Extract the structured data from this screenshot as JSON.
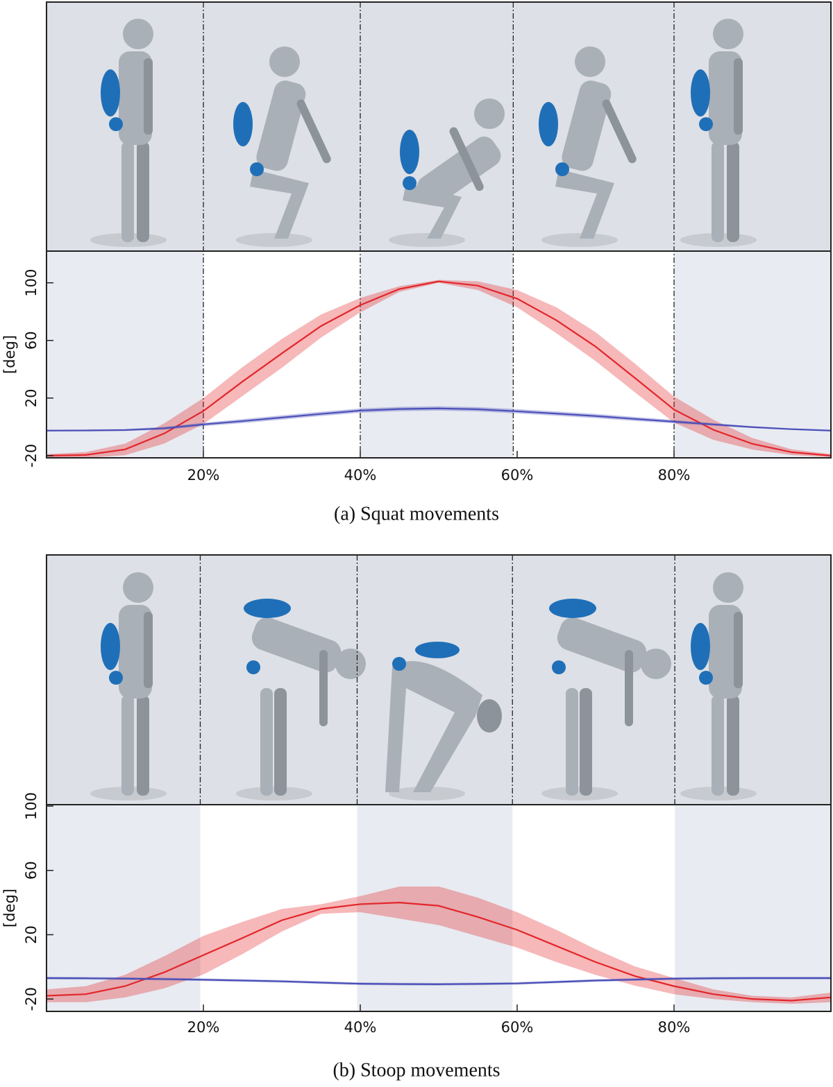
{
  "chart_data": [
    {
      "type": "line",
      "title": "(a) Squat movements",
      "y_label": "[deg]",
      "x": [
        0,
        5,
        10,
        15,
        20,
        25,
        30,
        35,
        40,
        45,
        50,
        55,
        60,
        65,
        70,
        75,
        80,
        85,
        90,
        95,
        100
      ],
      "xlim": [
        0,
        100
      ],
      "xticks": [
        {
          "value": 20,
          "label": "20%"
        },
        {
          "value": 40,
          "label": "40%"
        },
        {
          "value": 60,
          "label": "60%"
        },
        {
          "value": 80,
          "label": "80%"
        }
      ],
      "ylim": [
        -21.5,
        122
      ],
      "yticks": [
        -20,
        20,
        60,
        100
      ],
      "phase_lines": [
        20,
        40,
        59.5,
        80
      ],
      "phase_lines_in_chart": true,
      "series": [
        {
          "color": "#e3262b",
          "values": [
            -20,
            -19.5,
            -15.7,
            -4.6,
            11,
            31.5,
            51,
            70,
            84.5,
            95.7,
            101,
            98,
            89,
            74,
            55.7,
            34,
            12,
            -2,
            -11.8,
            -17.6,
            -20
          ],
          "lower": [
            -21,
            -21.5,
            -19.7,
            -11.6,
            2,
            21.5,
            41,
            62,
            79.5,
            93.7,
            100,
            95,
            83,
            65,
            45.7,
            24,
            3,
            -9,
            -15.8,
            -19.6,
            -21
          ],
          "upper": [
            -19,
            -17.5,
            -11.7,
            2.4,
            20,
            41.5,
            61,
            78,
            89.5,
            97.7,
            102,
            101,
            95,
            83,
            65.7,
            44,
            21,
            5,
            -7.8,
            -15.6,
            -19
          ]
        },
        {
          "color": "#4b4fb8",
          "values": [
            -2.6,
            -2.5,
            -2.2,
            -1,
            1.7,
            4,
            6.5,
            9,
            11.3,
            12.4,
            12.8,
            12.2,
            10.8,
            9.2,
            7.5,
            5.5,
            3.6,
            1.7,
            -0.2,
            -1.6,
            -2.6
          ],
          "lower": [
            -3.1,
            -3.1,
            -2.9,
            -2,
            0.5,
            2.6,
            5,
            7.5,
            9.8,
            10.9,
            11.3,
            10.7,
            9.3,
            7.7,
            6,
            4.1,
            2.4,
            0.8,
            -0.8,
            -2.1,
            -3.1
          ],
          "upper": [
            -2.1,
            -1.9,
            -1.5,
            0,
            2.9,
            5.4,
            8,
            10.5,
            12.8,
            13.9,
            14.3,
            13.7,
            12.3,
            10.7,
            9,
            6.9,
            4.8,
            2.6,
            0.4,
            -1.1,
            -2.1
          ]
        }
      ]
    },
    {
      "type": "line",
      "title": "(b) Stoop movements",
      "y_label": "[deg]",
      "x": [
        0,
        5,
        10,
        15,
        20,
        25,
        30,
        35,
        40,
        45,
        50,
        55,
        60,
        65,
        70,
        75,
        80,
        85,
        90,
        95,
        100
      ],
      "xlim": [
        0,
        100
      ],
      "xticks": [
        {
          "value": 20,
          "label": "20%"
        },
        {
          "value": 40,
          "label": "40%"
        },
        {
          "value": 60,
          "label": "60%"
        },
        {
          "value": 80,
          "label": "80%"
        }
      ],
      "ylim": [
        -27.7,
        100.9
      ],
      "yticks": [
        -20,
        20,
        60,
        100
      ],
      "phase_lines": [
        19.6,
        39.6,
        59.4,
        80.1
      ],
      "phase_lines_in_chart": false,
      "series": [
        {
          "color": "#e3262b",
          "values": [
            -18,
            -17,
            -12,
            -3.4,
            7.3,
            18,
            29,
            36,
            39,
            40,
            38,
            31,
            23,
            13,
            3,
            -5.7,
            -12,
            -17,
            -20,
            -21,
            -19
          ],
          "lower": [
            -22,
            -22,
            -19,
            -13.4,
            -4.7,
            8,
            22,
            33,
            34,
            30,
            26,
            19,
            12,
            3,
            -5,
            -11.7,
            -17,
            -20,
            -22,
            -23,
            -22
          ],
          "upper": [
            -14,
            -12,
            -5,
            6.6,
            19.3,
            28,
            36,
            39,
            44,
            50,
            50,
            43,
            34,
            23,
            11,
            0.3,
            -7,
            -14,
            -18,
            -19,
            -16
          ]
        },
        {
          "color": "#4b4fb8",
          "values": [
            -7,
            -7.1,
            -7.3,
            -7.6,
            -8,
            -8.5,
            -9,
            -9.8,
            -10.5,
            -10.7,
            -10.8,
            -10.6,
            -10.3,
            -9.4,
            -8.5,
            -7.9,
            -7.3,
            -7.1,
            -7,
            -7,
            -7
          ],
          "lower": [
            -7.8,
            -7.9,
            -8.1,
            -8.4,
            -8.8,
            -9.3,
            -9.8,
            -10.6,
            -11.3,
            -11.5,
            -11.6,
            -11.4,
            -11.1,
            -10.2,
            -9.3,
            -8.7,
            -8.1,
            -7.9,
            -7.8,
            -7.8,
            -7.8
          ],
          "upper": [
            -6.2,
            -6.3,
            -6.5,
            -6.8,
            -7.2,
            -7.7,
            -8.2,
            -9,
            -9.7,
            -9.9,
            -10,
            -9.8,
            -9.5,
            -8.6,
            -7.7,
            -7.1,
            -6.5,
            -6.3,
            -6.2,
            -6.2,
            -6.2
          ]
        }
      ]
    }
  ]
}
